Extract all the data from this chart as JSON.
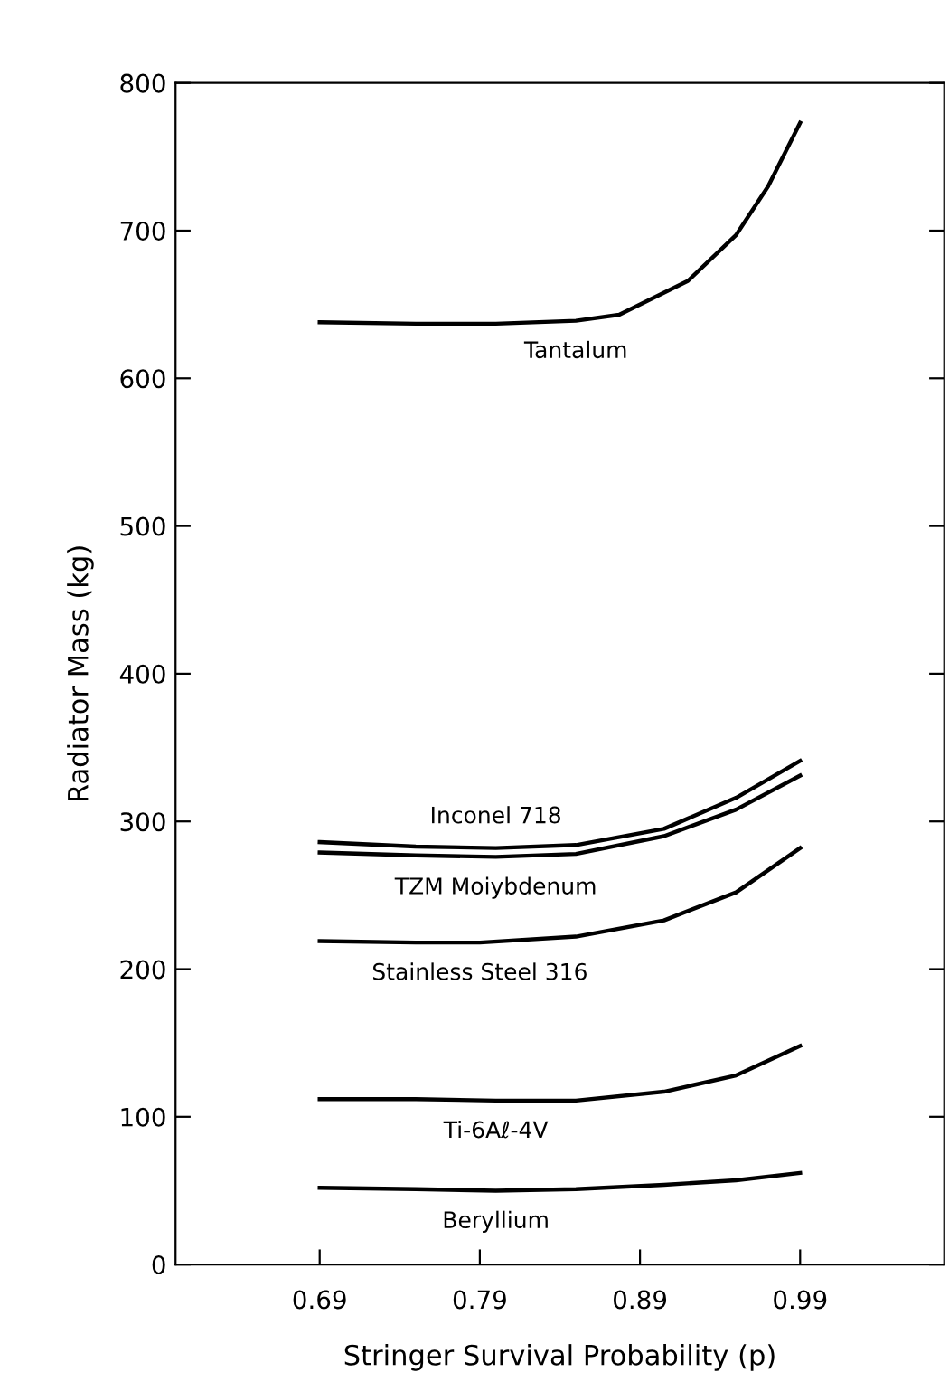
{
  "chart_data": {
    "type": "line",
    "xlabel": "Stringer Survival Probability (p)",
    "ylabel": "Radiator Mass (kg)",
    "xlim": [
      0.6,
      1.08
    ],
    "ylim": [
      0,
      800
    ],
    "xticks": [
      0.69,
      0.79,
      0.89,
      0.99
    ],
    "yticks": [
      0,
      100,
      200,
      300,
      400,
      500,
      600,
      700,
      800
    ],
    "grid": false,
    "legend": false,
    "marker": "none",
    "line_style": "solid",
    "series": [
      {
        "name": "Tantalum",
        "color": "#000000",
        "x": [
          0.69,
          0.75,
          0.8,
          0.85,
          0.877,
          0.92,
          0.95,
          0.97,
          0.99
        ],
        "values": [
          638,
          637,
          637,
          639,
          643,
          666,
          697,
          730,
          773
        ]
      },
      {
        "name": "Inconel 718",
        "color": "#000000",
        "x": [
          0.69,
          0.75,
          0.8,
          0.85,
          0.905,
          0.95,
          0.99
        ],
        "values": [
          286,
          283,
          282,
          284,
          295,
          316,
          341
        ]
      },
      {
        "name": "TZM Moiybdenum",
        "color": "#000000",
        "x": [
          0.69,
          0.75,
          0.8,
          0.85,
          0.905,
          0.95,
          0.99
        ],
        "values": [
          279,
          277,
          276,
          278,
          290,
          308,
          331
        ]
      },
      {
        "name": "Stainless Steel 316",
        "color": "#000000",
        "x": [
          0.69,
          0.75,
          0.79,
          0.85,
          0.905,
          0.95,
          0.99
        ],
        "values": [
          219,
          218,
          218,
          222,
          233,
          252,
          282
        ]
      },
      {
        "name": "Ti-6Aℓ-4V",
        "color": "#000000",
        "x": [
          0.69,
          0.75,
          0.8,
          0.85,
          0.905,
          0.95,
          0.99
        ],
        "values": [
          112,
          112,
          111,
          111,
          117,
          128,
          148
        ]
      },
      {
        "name": "Beryllium",
        "color": "#000000",
        "x": [
          0.69,
          0.75,
          0.8,
          0.85,
          0.905,
          0.95,
          0.99
        ],
        "values": [
          52,
          51,
          50,
          51,
          54,
          57,
          62
        ]
      }
    ]
  }
}
